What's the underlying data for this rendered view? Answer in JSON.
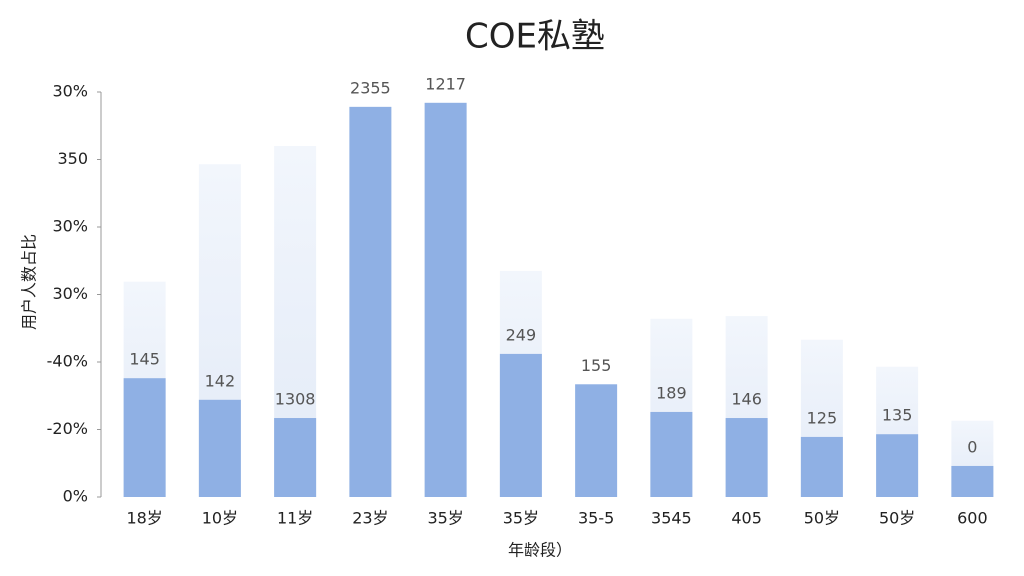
{
  "chart_data": {
    "type": "bar",
    "title": "COE私塾",
    "x_label": "年龄段）",
    "y_label": "用户人数占比",
    "categories": [
      "18岁",
      "10岁",
      "11岁",
      "23岁",
      "35岁",
      "35岁",
      "35-5",
      "3545",
      "405",
      "50岁",
      "50岁",
      "600"
    ],
    "series": [
      {
        "color": "#e9eff9",
        "values": [
          3.19,
          4.93,
          5.2,
          null,
          null,
          3.35,
          null,
          2.64,
          2.68,
          2.33,
          1.93,
          1.13
        ]
      },
      {
        "color": "#8fb0e4",
        "values": [
          1.76,
          1.44,
          1.17,
          5.78,
          5.84,
          2.12,
          1.67,
          1.26,
          1.17,
          0.89,
          0.93,
          0.46
        ]
      }
    ],
    "bar_labels": [
      "145",
      "142",
      "1308",
      "2355",
      "1217",
      "249",
      "155",
      "189",
      "146",
      "125",
      "135",
      "0"
    ],
    "ylim": [
      0,
      6
    ],
    "yticks": [
      {
        "value": 0,
        "label": "0%"
      },
      {
        "value": 1,
        "label": "-20%"
      },
      {
        "value": 2,
        "label": "-40%"
      },
      {
        "value": 3,
        "label": "30%"
      },
      {
        "value": 4,
        "label": "30%"
      },
      {
        "value": 5,
        "label": "350"
      },
      {
        "value": 6,
        "label": "30%"
      }
    ],
    "grid": false
  }
}
